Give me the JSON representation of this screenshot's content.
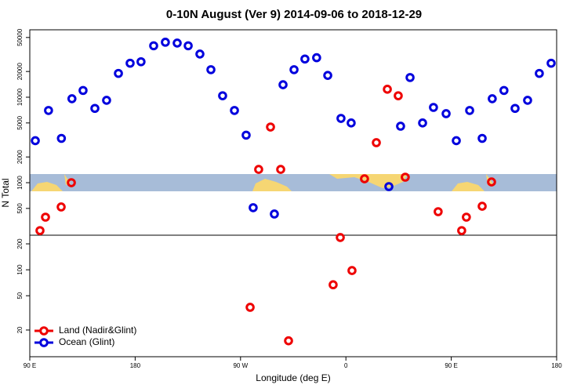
{
  "chart_data": [
    {
      "type": "scatter",
      "title": "0-10N August (Ver 9)   2014-09-06 to 2018-12-29",
      "ylabel": "N Total",
      "log_y": true,
      "xlim": [
        90,
        540
      ],
      "ylim": [
        243,
        61500
      ],
      "yticks": [
        500,
        1000,
        2000,
        5000,
        10000,
        20000,
        50000
      ],
      "legend": "lower left",
      "series": [
        {
          "name": "Land (Nadir&Glint)",
          "color": "#ee0000",
          "x": [
            98.7,
            103.4,
            116.8,
            125.5,
            285.5,
            295.6,
            304.3,
            375.9,
            386,
            395.4,
            404.7,
            410.7,
            438.8,
            458.9,
            462.9,
            476.4,
            484.4
          ],
          "values": [
            275,
            395,
            520,
            1000,
            1430,
            4480,
            1430,
            1110,
            2940,
            12400,
            10400,
            1160,
            458,
            275,
            395,
            530,
            1020
          ]
        },
        {
          "name": "Ocean (Glint)",
          "color": "#0000dd",
          "x": [
            94.7,
            106,
            117,
            126,
            135.5,
            145.6,
            155.6,
            165.7,
            175.7,
            185,
            195.8,
            205.8,
            215.9,
            225.3,
            235.3,
            244.7,
            254.7,
            264.8,
            274.8,
            280.8,
            298.9,
            306.3,
            315.7,
            325,
            335,
            344.5,
            355.8,
            364.5,
            396.7,
            406.7,
            414.8,
            425.5,
            434.8,
            445.6,
            454.3,
            465.7,
            476.4,
            485,
            495,
            504.5,
            515.2,
            525.2,
            535.3
          ],
          "values": [
            3100,
            7000,
            3300,
            9600,
            12000,
            7400,
            9200,
            19000,
            25000,
            26000,
            40000,
            44000,
            43000,
            40000,
            32000,
            21000,
            10400,
            7000,
            3600,
            510,
            430,
            14000,
            21000,
            28000,
            29000,
            18000,
            5650,
            5000,
            900,
            4580,
            17000,
            5000,
            7600,
            6420,
            3100,
            7000,
            3300,
            9600,
            12000,
            7400,
            9200,
            19000,
            25000
          ]
        }
      ]
    },
    {
      "type": "scatter",
      "xlabel": "Longitude (deg E)",
      "log_y": true,
      "xlim": [
        90,
        540
      ],
      "ylim": [
        9.8,
        252
      ],
      "xticks": [
        {
          "value": 90,
          "label": "90 E"
        },
        180,
        {
          "value": 270,
          "label": "90 W"
        },
        {
          "value": 360,
          "label": "0"
        },
        {
          "value": 450,
          "label": "90 E"
        },
        {
          "value": 540,
          "label": "180"
        }
      ],
      "yticks": [
        20,
        50,
        100,
        200
      ],
      "series": [
        {
          "color": "#ee0000",
          "x": [
            278.2,
            311,
            355.2,
            349.1,
            365.2
          ],
          "values": [
            36.7,
            15,
            237,
            67,
            98
          ]
        }
      ]
    }
  ]
}
